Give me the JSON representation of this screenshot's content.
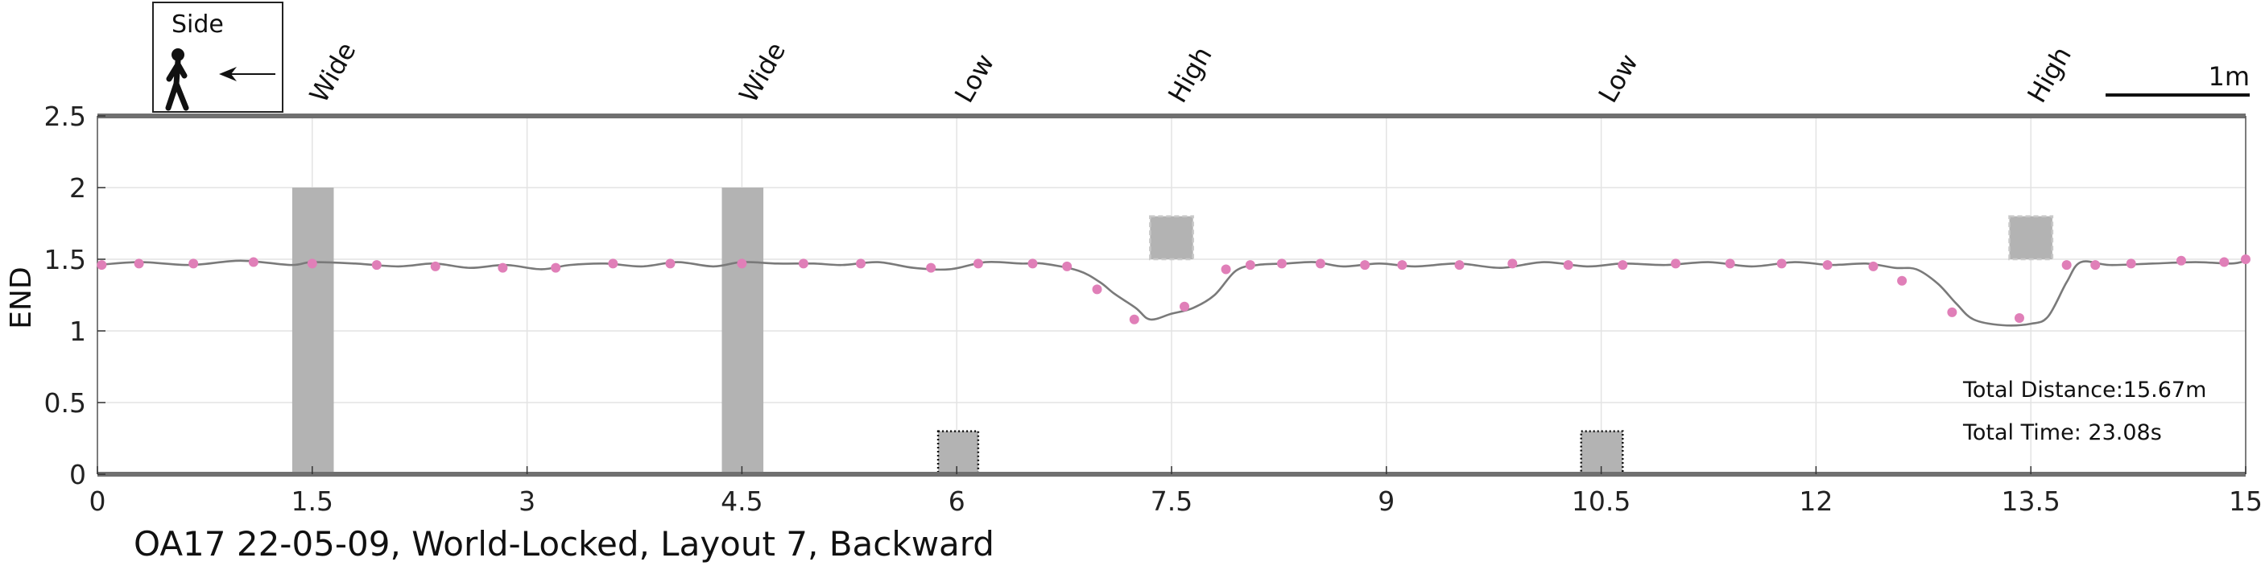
{
  "chart_data": {
    "type": "line",
    "title": "OA17 22-05-09, World-Locked, Layout 7, Backward",
    "xlabel": "",
    "ylabel": "END",
    "xlim": [
      0,
      15
    ],
    "ylim": [
      0,
      2.5
    ],
    "xticks": [
      0,
      1.5,
      3,
      4.5,
      6,
      7.5,
      9,
      10.5,
      12,
      13.5,
      15
    ],
    "xtick_labels": [
      "0",
      "1.5",
      "3",
      "4.5",
      "6",
      "7.5",
      "9",
      "10.5",
      "12",
      "13.5",
      "15"
    ],
    "yticks": [
      0,
      0.5,
      1,
      1.5,
      2,
      2.5
    ],
    "ytick_labels": [
      "0",
      "0.5",
      "1",
      "1.5",
      "2",
      "2.5"
    ],
    "grid": true,
    "colors": {
      "trajectory": "#7a7a7a",
      "markers": "#e07fb8",
      "obstacle": "#b3b3b3",
      "frame": "#707070"
    },
    "series": [
      {
        "points": [
          [
            0,
            1.46
          ],
          [
            0.3,
            1.48
          ],
          [
            0.65,
            1.46
          ],
          [
            1.0,
            1.49
          ],
          [
            1.35,
            1.46
          ],
          [
            1.5,
            1.48
          ],
          [
            1.8,
            1.47
          ],
          [
            2.1,
            1.45
          ],
          [
            2.35,
            1.47
          ],
          [
            2.6,
            1.44
          ],
          [
            2.85,
            1.46
          ],
          [
            3.1,
            1.43
          ],
          [
            3.3,
            1.46
          ],
          [
            3.55,
            1.47
          ],
          [
            3.8,
            1.45
          ],
          [
            4.05,
            1.48
          ],
          [
            4.3,
            1.45
          ],
          [
            4.5,
            1.48
          ],
          [
            4.75,
            1.47
          ],
          [
            5.0,
            1.47
          ],
          [
            5.2,
            1.46
          ],
          [
            5.45,
            1.48
          ],
          [
            5.7,
            1.44
          ],
          [
            5.95,
            1.43
          ],
          [
            6.2,
            1.48
          ],
          [
            6.45,
            1.47
          ],
          [
            6.6,
            1.47
          ],
          [
            6.85,
            1.42
          ],
          [
            7.0,
            1.34
          ],
          [
            7.1,
            1.26
          ],
          [
            7.25,
            1.16
          ],
          [
            7.35,
            1.08
          ],
          [
            7.5,
            1.12
          ],
          [
            7.65,
            1.16
          ],
          [
            7.8,
            1.25
          ],
          [
            7.95,
            1.42
          ],
          [
            8.1,
            1.46
          ],
          [
            8.3,
            1.47
          ],
          [
            8.5,
            1.48
          ],
          [
            8.7,
            1.45
          ],
          [
            8.95,
            1.47
          ],
          [
            9.2,
            1.45
          ],
          [
            9.5,
            1.47
          ],
          [
            9.8,
            1.44
          ],
          [
            10.1,
            1.48
          ],
          [
            10.4,
            1.45
          ],
          [
            10.65,
            1.47
          ],
          [
            10.95,
            1.46
          ],
          [
            11.25,
            1.48
          ],
          [
            11.55,
            1.45
          ],
          [
            11.85,
            1.48
          ],
          [
            12.1,
            1.46
          ],
          [
            12.35,
            1.47
          ],
          [
            12.55,
            1.44
          ],
          [
            12.7,
            1.43
          ],
          [
            12.85,
            1.33
          ],
          [
            12.98,
            1.19
          ],
          [
            13.1,
            1.08
          ],
          [
            13.3,
            1.04
          ],
          [
            13.5,
            1.05
          ],
          [
            13.62,
            1.1
          ],
          [
            13.75,
            1.34
          ],
          [
            13.85,
            1.48
          ],
          [
            14.05,
            1.46
          ],
          [
            14.35,
            1.47
          ],
          [
            14.65,
            1.48
          ],
          [
            14.9,
            1.47
          ],
          [
            15.0,
            1.49
          ]
        ],
        "markers": [
          [
            0.03,
            1.46
          ],
          [
            0.29,
            1.47
          ],
          [
            0.67,
            1.47
          ],
          [
            1.09,
            1.48
          ],
          [
            1.5,
            1.47
          ],
          [
            1.95,
            1.46
          ],
          [
            2.36,
            1.45
          ],
          [
            2.83,
            1.44
          ],
          [
            3.2,
            1.44
          ],
          [
            3.6,
            1.47
          ],
          [
            4.0,
            1.47
          ],
          [
            4.5,
            1.47
          ],
          [
            4.93,
            1.47
          ],
          [
            5.33,
            1.47
          ],
          [
            5.82,
            1.44
          ],
          [
            6.15,
            1.47
          ],
          [
            6.53,
            1.47
          ],
          [
            6.77,
            1.45
          ],
          [
            6.98,
            1.29
          ],
          [
            7.24,
            1.08
          ],
          [
            7.59,
            1.17
          ],
          [
            7.88,
            1.43
          ],
          [
            8.05,
            1.46
          ],
          [
            8.27,
            1.47
          ],
          [
            8.54,
            1.47
          ],
          [
            8.85,
            1.46
          ],
          [
            9.11,
            1.46
          ],
          [
            9.51,
            1.46
          ],
          [
            9.88,
            1.47
          ],
          [
            10.27,
            1.46
          ],
          [
            10.65,
            1.46
          ],
          [
            11.02,
            1.47
          ],
          [
            11.4,
            1.47
          ],
          [
            11.76,
            1.47
          ],
          [
            12.08,
            1.46
          ],
          [
            12.4,
            1.45
          ],
          [
            12.6,
            1.35
          ],
          [
            12.95,
            1.13
          ],
          [
            13.42,
            1.09
          ],
          [
            13.75,
            1.46
          ],
          [
            13.95,
            1.46
          ],
          [
            14.2,
            1.47
          ],
          [
            14.55,
            1.49
          ],
          [
            14.85,
            1.48
          ],
          [
            15.0,
            1.5
          ]
        ]
      }
    ],
    "obstacles": [
      {
        "label": "Wide",
        "x": [
          1.36,
          1.65
        ],
        "y": [
          0,
          2.0
        ],
        "style": "solid"
      },
      {
        "label": "Wide",
        "x": [
          4.36,
          4.65
        ],
        "y": [
          0,
          2.0
        ],
        "style": "solid"
      },
      {
        "label": "Low",
        "x": [
          5.87,
          6.15
        ],
        "y": [
          0,
          0.3
        ],
        "style": "dotted"
      },
      {
        "label": "High",
        "x": [
          7.35,
          7.65
        ],
        "y": [
          1.5,
          1.8
        ],
        "style": "dashed"
      },
      {
        "label": "Low",
        "x": [
          10.36,
          10.65
        ],
        "y": [
          0,
          0.3
        ],
        "style": "dotted"
      },
      {
        "label": "High",
        "x": [
          13.35,
          13.65
        ],
        "y": [
          1.5,
          1.8
        ],
        "style": "dashed"
      }
    ],
    "annotations": {
      "total_distance": "Total Distance:15.67m",
      "total_time": "Total Time: 23.08s",
      "scale_bar": "1m",
      "view_label": "Side"
    }
  }
}
